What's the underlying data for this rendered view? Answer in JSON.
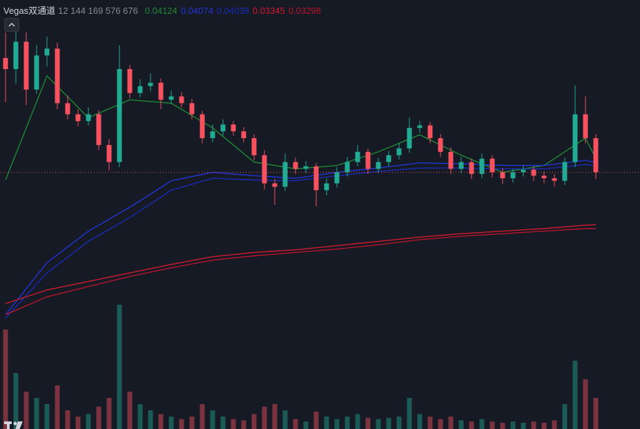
{
  "chart_data": {
    "type": "candlestick",
    "open": [
      0.053,
      0.0517,
      0.0549,
      0.0493,
      0.0533,
      0.0541,
      0.0477,
      0.0464,
      0.0456,
      0.0464,
      0.0428,
      0.0408,
      0.0517,
      0.0489,
      0.0497,
      0.0501,
      0.0481,
      0.0485,
      0.0477,
      0.0464,
      0.0436,
      0.0444,
      0.0452,
      0.0444,
      0.0436,
      0.0416,
      0.0383,
      0.0379,
      0.0408,
      0.04,
      0.0403,
      0.0375,
      0.0383,
      0.0396,
      0.0408,
      0.042,
      0.04,
      0.0408,
      0.0416,
      0.0424,
      0.0448,
      0.0451,
      0.0436,
      0.042,
      0.04,
      0.0408,
      0.0394,
      0.0412,
      0.0396,
      0.0389,
      0.0396,
      0.0399,
      0.0392,
      0.0389,
      0.0386,
      0.0408,
      0.0464,
      0.0436
    ],
    "high": [
      0.056,
      0.0575,
      0.056,
      0.0545,
      0.0555,
      0.0548,
      0.0486,
      0.047,
      0.0472,
      0.0469,
      0.0435,
      0.0545,
      0.0522,
      0.0505,
      0.0512,
      0.0506,
      0.0492,
      0.049,
      0.0482,
      0.0468,
      0.0452,
      0.0458,
      0.0456,
      0.0449,
      0.0441,
      0.0422,
      0.0388,
      0.0418,
      0.0413,
      0.0409,
      0.0407,
      0.0389,
      0.0402,
      0.0414,
      0.0428,
      0.0424,
      0.0413,
      0.0421,
      0.043,
      0.046,
      0.0456,
      0.0455,
      0.0441,
      0.0425,
      0.0414,
      0.0412,
      0.0418,
      0.0416,
      0.0401,
      0.04,
      0.0404,
      0.0403,
      0.0397,
      0.0394,
      0.0413,
      0.0498,
      0.0485,
      0.0441
    ],
    "low": [
      0.0478,
      0.05,
      0.0475,
      0.0488,
      0.052,
      0.047,
      0.0458,
      0.045,
      0.0451,
      0.0422,
      0.0398,
      0.0402,
      0.0483,
      0.0484,
      0.0491,
      0.047,
      0.0476,
      0.0472,
      0.0458,
      0.043,
      0.0431,
      0.0439,
      0.0439,
      0.0431,
      0.041,
      0.0376,
      0.0358,
      0.0374,
      0.0394,
      0.0395,
      0.0356,
      0.0369,
      0.0378,
      0.0391,
      0.0403,
      0.0394,
      0.0395,
      0.0403,
      0.0411,
      0.0419,
      0.0442,
      0.043,
      0.0414,
      0.0394,
      0.0395,
      0.0388,
      0.0389,
      0.039,
      0.0382,
      0.0384,
      0.0391,
      0.0386,
      0.0383,
      0.0379,
      0.0381,
      0.0402,
      0.043,
      0.0388
    ],
    "close": [
      0.0517,
      0.0549,
      0.0493,
      0.0533,
      0.0541,
      0.0477,
      0.0464,
      0.0456,
      0.0464,
      0.0428,
      0.0408,
      0.0517,
      0.0489,
      0.0497,
      0.0501,
      0.0481,
      0.0485,
      0.0477,
      0.0464,
      0.0436,
      0.0444,
      0.0452,
      0.0444,
      0.0436,
      0.0416,
      0.0383,
      0.0379,
      0.0408,
      0.04,
      0.0403,
      0.0375,
      0.0383,
      0.0396,
      0.0408,
      0.042,
      0.04,
      0.0408,
      0.0416,
      0.0424,
      0.0448,
      0.0451,
      0.0436,
      0.042,
      0.04,
      0.0408,
      0.0394,
      0.0412,
      0.0396,
      0.0389,
      0.0396,
      0.0399,
      0.0392,
      0.0389,
      0.0386,
      0.0408,
      0.0464,
      0.0436,
      0.0396
    ],
    "volume": [
      80,
      45,
      30,
      25,
      20,
      35,
      15,
      10,
      12,
      18,
      25,
      100,
      30,
      20,
      15,
      12,
      10,
      8,
      10,
      20,
      15,
      10,
      8,
      7,
      12,
      18,
      20,
      15,
      8,
      6,
      14,
      10,
      8,
      10,
      12,
      9,
      8,
      9,
      10,
      25,
      12,
      10,
      8,
      10,
      7,
      6,
      8,
      6,
      5,
      6,
      5,
      6,
      5,
      7,
      20,
      55,
      40,
      25
    ],
    "ylim": [
      0.0095,
      0.0598
    ],
    "vlim": [
      0,
      100
    ],
    "up_color": "#22ab94",
    "down_color": "#f7525f",
    "indicator": {
      "name": "Vegas双通道",
      "params": "12 144 169 576 676",
      "x": [
        0,
        4,
        8,
        12,
        16,
        20,
        24,
        28,
        32,
        36,
        40,
        44,
        48,
        52,
        56,
        57
      ],
      "series": [
        {
          "color": "#1f8a35",
          "values": [
            0.0387,
            0.0509,
            0.046,
            0.0481,
            0.0477,
            0.0448,
            0.0408,
            0.04,
            0.0404,
            0.042,
            0.044,
            0.0416,
            0.0396,
            0.0404,
            0.0436,
            0.04124
          ]
        },
        {
          "color": "#2236d8",
          "values": [
            0.0229,
            0.029,
            0.0327,
            0.0355,
            0.0386,
            0.0396,
            0.0392,
            0.0389,
            0.0396,
            0.0401,
            0.0407,
            0.0406,
            0.0404,
            0.0404,
            0.041,
            0.04074
          ]
        },
        {
          "color": "#1a2bb8",
          "values": [
            0.0225,
            0.0278,
            0.0315,
            0.0343,
            0.0375,
            0.0389,
            0.0387,
            0.0386,
            0.0392,
            0.0397,
            0.0401,
            0.0401,
            0.04,
            0.04,
            0.0405,
            0.04038
          ]
        },
        {
          "color": "#d21c2c",
          "values": [
            0.0242,
            0.0258,
            0.0268,
            0.0278,
            0.0288,
            0.0297,
            0.0302,
            0.0305,
            0.031,
            0.0315,
            0.032,
            0.0324,
            0.0327,
            0.033,
            0.0334,
            0.03345
          ]
        },
        {
          "color": "#b8142a",
          "values": [
            0.0229,
            0.025,
            0.0262,
            0.0274,
            0.0284,
            0.0293,
            0.0298,
            0.0302,
            0.0306,
            0.0311,
            0.0317,
            0.0321,
            0.0324,
            0.0327,
            0.033,
            0.03298
          ]
        }
      ]
    }
  }
}
